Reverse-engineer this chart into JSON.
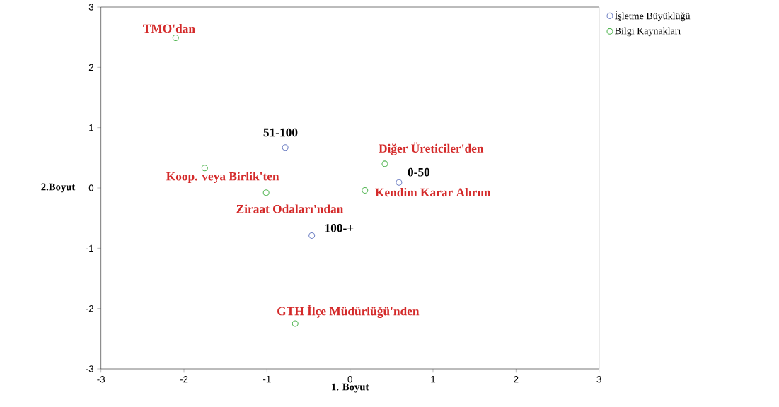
{
  "chart_data": {
    "type": "scatter",
    "xlabel": "1. Boyut",
    "ylabel": "2.Boyut",
    "xlim": [
      -3,
      3
    ],
    "ylim": [
      -3,
      3
    ],
    "xticks": [
      -3,
      -2,
      -1,
      0,
      1,
      2,
      3
    ],
    "yticks": [
      -3,
      -2,
      -1,
      0,
      1,
      2,
      3
    ],
    "marker": "circle",
    "legend": "top right",
    "series": [
      {
        "name": "İşletme Büyüklüğü",
        "color": "#6f80c4",
        "x": [
          0.59,
          -0.78,
          -0.46
        ],
        "values": [
          0.09,
          0.67,
          -0.79
        ]
      },
      {
        "name": "Bilgi Kaynakları",
        "color": "#52b552",
        "x": [
          -2.1,
          0.42,
          -1.75,
          -1.01,
          0.18,
          -0.66
        ],
        "values": [
          2.49,
          0.4,
          0.33,
          -0.08,
          -0.04,
          -2.25
        ]
      }
    ],
    "annotations": [
      {
        "text": "0-50",
        "x": 0.59,
        "y": 0.09
      },
      {
        "text": "51-100",
        "x": -0.78,
        "y": 0.67
      },
      {
        "text": "100-+",
        "x": -0.46,
        "y": -0.79
      },
      {
        "text": "TMO'dan",
        "x": -2.1,
        "y": 2.49
      },
      {
        "text": "Diğer Üreticiler'den",
        "x": 0.42,
        "y": 0.4
      },
      {
        "text": "Koop. veya Birlik'ten",
        "x": -1.75,
        "y": 0.33
      },
      {
        "text": "Ziraat Odaları'ndan",
        "x": -1.01,
        "y": -0.08
      },
      {
        "text": "Kendim Karar Alırım",
        "x": 0.18,
        "y": -0.04
      },
      {
        "text": "GTH İlçe Müdürlüğü'nden",
        "x": -0.66,
        "y": -2.25
      }
    ]
  }
}
